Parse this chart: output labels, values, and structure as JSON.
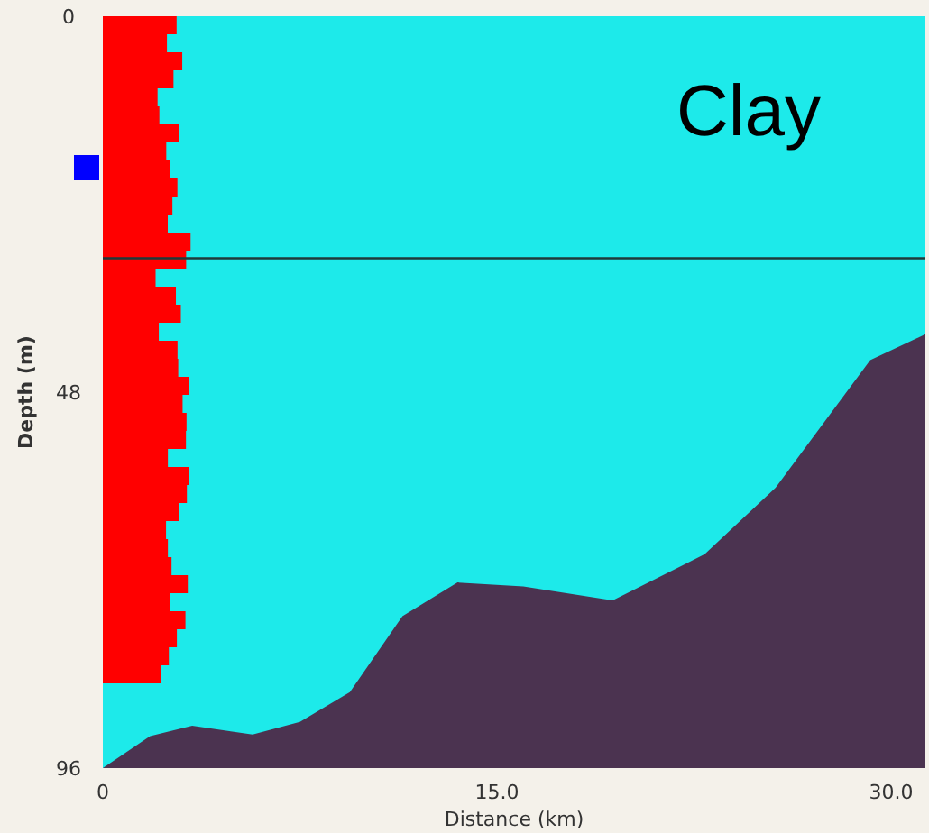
{
  "chart_data": {
    "type": "area",
    "xlabel": "Distance (km)",
    "ylabel": "Depth (m)",
    "x": [
      0,
      1.8,
      3.4,
      5.7,
      7.5,
      9.4,
      11.4,
      13.5,
      16.0,
      19.4,
      22.9,
      25.6,
      29.2,
      31.3
    ],
    "series": [
      {
        "color": "#1deaea",
        "values": [
          96,
          91.9,
          90.6,
          91.7,
          90.1,
          86.3,
          76.6,
          72.3,
          72.8,
          74.6,
          68.7,
          60.2,
          43.9,
          40.6
        ]
      }
    ],
    "xlim": [
      0,
      31.3
    ],
    "ylim": [
      96,
      0
    ],
    "xticks": [
      0,
      {
        "value": 15,
        "label": "15.0"
      },
      {
        "value": 30,
        "label": "30.0"
      }
    ],
    "yticks": [
      0,
      48,
      96
    ],
    "ref_lines": [
      {
        "axis": "y",
        "value": 30.9,
        "color": "#1f3a3a"
      }
    ],
    "annotations": [
      "Clay"
    ]
  }
}
